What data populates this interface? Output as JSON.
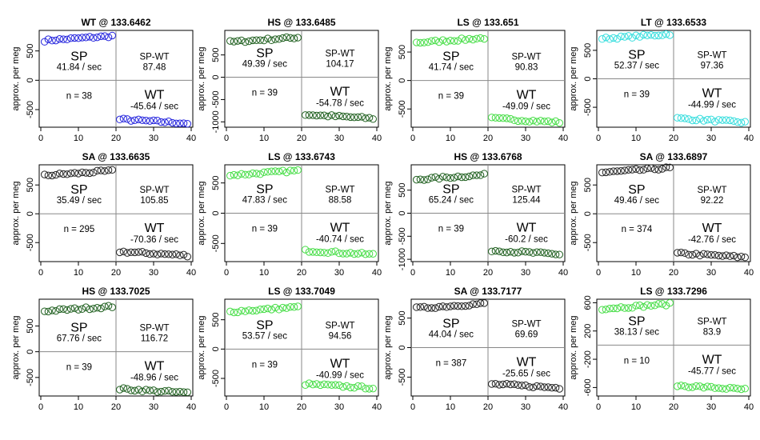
{
  "chart_data": [
    {
      "type": "scatter",
      "title": "WT @ 133.6462",
      "ylabel": "approx. per meg",
      "xlim": [
        0,
        40
      ],
      "ylim": [
        -800,
        850
      ],
      "yticks": [
        -500,
        0,
        500
      ],
      "xticks": [
        0,
        10,
        20,
        30,
        40
      ],
      "marker_color": "#2222dd",
      "sp_mean": 730,
      "wt_mean": -700,
      "sp_label": "SP",
      "sp_rate": "41.84 / sec",
      "diff_label": "SP-WT",
      "diff_value": "87.48",
      "n_label": "n = 38",
      "wt_label": "WT",
      "wt_rate": "-45.64 / sec"
    },
    {
      "type": "scatter",
      "title": "HS @ 133.6485",
      "ylabel": "approx. per meg",
      "xlim": [
        0,
        40
      ],
      "ylim": [
        -1120,
        1050
      ],
      "yticks": [
        -1000,
        -500,
        0,
        500
      ],
      "xticks": [
        0,
        10,
        20,
        30,
        40
      ],
      "marker_color": "#1f5f1f",
      "sp_mean": 860,
      "wt_mean": -880,
      "sp_label": "SP",
      "sp_rate": "49.39 / sec",
      "diff_label": "SP-WT",
      "diff_value": "104.17",
      "n_label": "n = 39",
      "wt_label": "WT",
      "wt_rate": "-54.78 / sec"
    },
    {
      "type": "scatter",
      "title": "LS @ 133.651",
      "ylabel": "approx. per meg",
      "xlim": [
        0,
        40
      ],
      "ylim": [
        -820,
        880
      ],
      "yticks": [
        -500,
        0,
        500
      ],
      "xticks": [
        0,
        10,
        20,
        30,
        40
      ],
      "marker_color": "#44dd44",
      "sp_mean": 720,
      "wt_mean": -700,
      "sp_label": "SP",
      "sp_rate": "41.74 / sec",
      "diff_label": "SP-WT",
      "diff_value": "90.83",
      "n_label": "n = 39",
      "wt_label": "WT",
      "wt_rate": "-49.09 / sec"
    },
    {
      "type": "scatter",
      "title": "LT @ 133.6533",
      "ylabel": "approx. per meg",
      "xlim": [
        0,
        40
      ],
      "ylim": [
        -850,
        850
      ],
      "yticks": [
        -500,
        0,
        500
      ],
      "xticks": [
        0,
        10,
        20,
        30,
        40
      ],
      "marker_color": "#33dddd",
      "sp_mean": 760,
      "wt_mean": -730,
      "sp_label": "SP",
      "sp_rate": "52.37 / sec",
      "diff_label": "SP-WT",
      "diff_value": "97.36",
      "n_label": "n = 39",
      "wt_label": "WT",
      "wt_rate": "-44.99 / sec"
    },
    {
      "type": "scatter",
      "title": "SA @ 133.6635",
      "ylabel": "approx. per meg",
      "xlim": [
        0,
        40
      ],
      "ylim": [
        -830,
        850
      ],
      "yticks": [
        -500,
        0,
        500
      ],
      "xticks": [
        0,
        10,
        20,
        30,
        40
      ],
      "marker_color": "#222222",
      "sp_mean": 720,
      "wt_mean": -690,
      "sp_label": "SP",
      "sp_rate": "35.49 / sec",
      "diff_label": "SP-WT",
      "diff_value": "105.85",
      "n_label": "n = 295",
      "wt_label": "WT",
      "wt_rate": "-70.36 / sec"
    },
    {
      "type": "scatter",
      "title": "LS @ 133.6743",
      "ylabel": "approx. per meg",
      "xlim": [
        0,
        40
      ],
      "ylim": [
        -800,
        800
      ],
      "yticks": [
        -500,
        0,
        500
      ],
      "xticks": [
        0,
        10,
        20,
        30,
        40
      ],
      "marker_color": "#44dd44",
      "sp_mean": 680,
      "wt_mean": -650,
      "sp_label": "SP",
      "sp_rate": "47.83 / sec",
      "diff_label": "SP-WT",
      "diff_value": "88.58",
      "n_label": "n = 39",
      "wt_label": "WT",
      "wt_rate": "-40.74 / sec"
    },
    {
      "type": "scatter",
      "title": "HS @ 133.6768",
      "ylabel": "approx. per meg",
      "xlim": [
        0,
        40
      ],
      "ylim": [
        -1050,
        1050
      ],
      "yticks": [
        -1000,
        -500,
        0,
        500
      ],
      "xticks": [
        0,
        10,
        20,
        30,
        40
      ],
      "marker_color": "#1f5f1f",
      "sp_mean": 800,
      "wt_mean": -850,
      "sp_label": "SP",
      "sp_rate": "65.24 / sec",
      "diff_label": "SP-WT",
      "diff_value": "125.44",
      "n_label": "n = 39",
      "wt_label": "WT",
      "wt_rate": "-60.2 / sec"
    },
    {
      "type": "scatter",
      "title": "SA @ 133.6897",
      "ylabel": "approx. per meg",
      "xlim": [
        0,
        40
      ],
      "ylim": [
        -830,
        850
      ],
      "yticks": [
        -500,
        0,
        500
      ],
      "xticks": [
        0,
        10,
        20,
        30,
        40
      ],
      "marker_color": "#222222",
      "sp_mean": 770,
      "wt_mean": -720,
      "sp_label": "SP",
      "sp_rate": "49.46 / sec",
      "diff_label": "SP-WT",
      "diff_value": "92.22",
      "n_label": "n = 374",
      "wt_label": "WT",
      "wt_rate": "-42.76 / sec"
    },
    {
      "type": "scatter",
      "title": "HS @ 133.7025",
      "ylabel": "approx. per meg",
      "xlim": [
        0,
        40
      ],
      "ylim": [
        -860,
        1020
      ],
      "yticks": [
        -500,
        0,
        500
      ],
      "xticks": [
        0,
        10,
        20,
        30,
        40
      ],
      "marker_color": "#1f5f1f",
      "sp_mean": 850,
      "wt_mean": -760,
      "sp_label": "SP",
      "sp_rate": "67.76 / sec",
      "diff_label": "SP-WT",
      "diff_value": "116.72",
      "n_label": "n = 39",
      "wt_label": "WT",
      "wt_rate": "-48.96 / sec"
    },
    {
      "type": "scatter",
      "title": "LS @ 133.7049",
      "ylabel": "approx. per meg",
      "xlim": [
        0,
        40
      ],
      "ylim": [
        -800,
        850
      ],
      "yticks": [
        -500,
        0,
        500
      ],
      "xticks": [
        0,
        10,
        20,
        30,
        40
      ],
      "marker_color": "#44dd44",
      "sp_mean": 690,
      "wt_mean": -630,
      "sp_label": "SP",
      "sp_rate": "53.57 / sec",
      "diff_label": "SP-WT",
      "diff_value": "94.56",
      "n_label": "n = 39",
      "wt_label": "WT",
      "wt_rate": "-40.99 / sec"
    },
    {
      "type": "scatter",
      "title": "SA @ 133.7177",
      "ylabel": "approx. per meg",
      "xlim": [
        0,
        40
      ],
      "ylim": [
        -820,
        820
      ],
      "yticks": [
        -500,
        0,
        500
      ],
      "xticks": [
        0,
        10,
        20,
        30,
        40
      ],
      "marker_color": "#222222",
      "sp_mean": 720,
      "wt_mean": -650,
      "sp_label": "SP",
      "sp_rate": "44.04 / sec",
      "diff_label": "SP-WT",
      "diff_value": "69.69",
      "n_label": "n = 387",
      "wt_label": "WT",
      "wt_rate": "-25.65 / sec"
    },
    {
      "type": "scatter",
      "title": "LS @ 133.7296",
      "ylabel": "approx. per meg",
      "xlim": [
        0,
        40
      ],
      "ylim": [
        -720,
        650
      ],
      "yticks": [
        -600,
        -200,
        200,
        600
      ],
      "xticks": [
        0,
        10,
        20,
        30,
        40
      ],
      "marker_color": "#44dd44",
      "sp_mean": 560,
      "wt_mean": -600,
      "sp_label": "SP",
      "sp_rate": "38.13 / sec",
      "diff_label": "SP-WT",
      "diff_value": "83.9",
      "n_label": "n = 10",
      "wt_label": "WT",
      "wt_rate": "-45.77 / sec"
    }
  ]
}
